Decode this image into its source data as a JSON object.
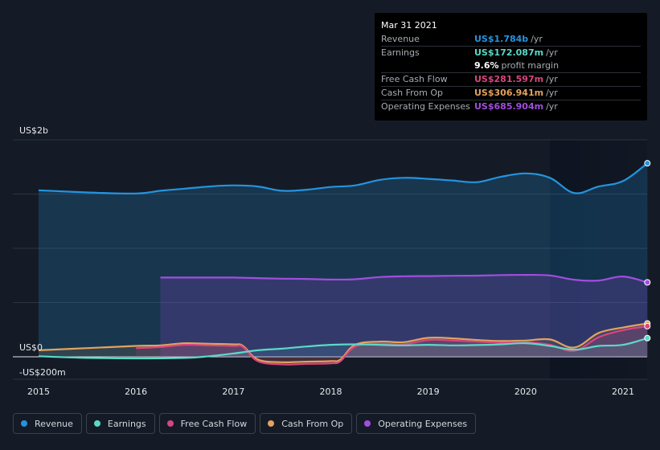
{
  "chart_data": {
    "type": "area",
    "currency_labels": {
      "top": "US$2b",
      "zero": "US$0",
      "bottom": "-US$200m"
    },
    "ylim": [
      -200,
      2000
    ],
    "x_ticks": [
      "2015",
      "2016",
      "2017",
      "2018",
      "2019",
      "2020",
      "2021"
    ],
    "x_tick_values": [
      2015,
      2016,
      2017,
      2018,
      2019,
      2020,
      2021
    ],
    "forecast_shade_start": 2020.25,
    "series": [
      {
        "name": "Revenue",
        "color": "#2394df",
        "x": [
          2015,
          2015.5,
          2016,
          2016.25,
          2016.5,
          2016.75,
          2017,
          2017.25,
          2017.5,
          2017.75,
          2018,
          2018.25,
          2018.5,
          2018.75,
          2019,
          2019.25,
          2019.5,
          2019.75,
          2020,
          2020.25,
          2020.5,
          2020.75,
          2021,
          2021.25
        ],
        "y": [
          1535,
          1515,
          1505,
          1530,
          1550,
          1570,
          1580,
          1570,
          1530,
          1540,
          1565,
          1580,
          1630,
          1650,
          1640,
          1625,
          1610,
          1660,
          1690,
          1650,
          1510,
          1570,
          1620,
          1784
        ]
      },
      {
        "name": "Earnings",
        "color": "#5bd9c8",
        "x": [
          2015,
          2015.5,
          2016,
          2016.5,
          2016.75,
          2017,
          2017.25,
          2017.5,
          2017.75,
          2018,
          2018.25,
          2018.5,
          2018.75,
          2019,
          2019.25,
          2019.5,
          2019.75,
          2020,
          2020.25,
          2020.5,
          2020.75,
          2021,
          2021.25
        ],
        "y": [
          5,
          -10,
          -15,
          -10,
          5,
          30,
          60,
          75,
          95,
          110,
          115,
          110,
          105,
          110,
          105,
          108,
          115,
          125,
          100,
          65,
          100,
          110,
          172
        ]
      },
      {
        "name": "Free Cash Flow",
        "color": "#d9457f",
        "x": [
          2016,
          2016.25,
          2016.5,
          2016.75,
          2017,
          2017.1,
          2017.25,
          2017.5,
          2017.75,
          2018,
          2018.1,
          2018.25,
          2018.5,
          2018.75,
          2019,
          2019.25,
          2019.5,
          2019.75,
          2020,
          2020.25,
          2020.5,
          2020.75,
          2021,
          2021.25
        ],
        "y": [
          80,
          90,
          110,
          105,
          100,
          90,
          -40,
          -70,
          -65,
          -60,
          -40,
          95,
          120,
          115,
          155,
          150,
          140,
          130,
          135,
          110,
          55,
          180,
          245,
          282
        ]
      },
      {
        "name": "Cash From Op",
        "color": "#e2a35e",
        "x": [
          2015,
          2015.5,
          2016,
          2016.25,
          2016.5,
          2016.75,
          2017,
          2017.1,
          2017.25,
          2017.5,
          2017.75,
          2018,
          2018.1,
          2018.25,
          2018.5,
          2018.75,
          2019,
          2019.25,
          2019.5,
          2019.75,
          2020,
          2020.25,
          2020.5,
          2020.75,
          2021,
          2021.25
        ],
        "y": [
          60,
          80,
          100,
          105,
          125,
          120,
          115,
          100,
          -25,
          -50,
          -45,
          -40,
          -25,
          110,
          140,
          135,
          175,
          170,
          155,
          145,
          150,
          160,
          85,
          220,
          270,
          307
        ]
      },
      {
        "name": "Operating Expenses",
        "color": "#a24de0",
        "x": [
          2016.25,
          2016.5,
          2016.75,
          2017,
          2017.25,
          2017.5,
          2017.75,
          2018,
          2018.25,
          2018.5,
          2018.75,
          2019,
          2019.25,
          2019.5,
          2019.75,
          2020,
          2020.25,
          2020.5,
          2020.75,
          2021,
          2021.25
        ],
        "y": [
          730,
          730,
          730,
          730,
          725,
          720,
          718,
          712,
          715,
          735,
          742,
          744,
          747,
          748,
          753,
          755,
          750,
          710,
          703,
          740,
          686
        ]
      }
    ]
  },
  "tooltip": {
    "date": "Mar 31 2021",
    "rows": [
      {
        "label": "Revenue",
        "value": "US$1.784b",
        "unit": "/yr",
        "color": "#2394df"
      },
      {
        "label": "Earnings",
        "value": "US$172.087m",
        "unit": "/yr",
        "color": "#5bd9c8"
      },
      {
        "label": "Free Cash Flow",
        "value": "US$281.597m",
        "unit": "/yr",
        "color": "#d9457f"
      },
      {
        "label": "Cash From Op",
        "value": "US$306.941m",
        "unit": "/yr",
        "color": "#e2a35e"
      },
      {
        "label": "Operating Expenses",
        "value": "US$685.904m",
        "unit": "/yr",
        "color": "#a24de0"
      }
    ],
    "profit_margin": {
      "value": "9.6%",
      "text": "profit margin"
    }
  },
  "legend": [
    {
      "label": "Revenue",
      "color": "#2394df"
    },
    {
      "label": "Earnings",
      "color": "#5bd9c8"
    },
    {
      "label": "Free Cash Flow",
      "color": "#d9457f"
    },
    {
      "label": "Cash From Op",
      "color": "#e2a35e"
    },
    {
      "label": "Operating Expenses",
      "color": "#a24de0"
    }
  ]
}
